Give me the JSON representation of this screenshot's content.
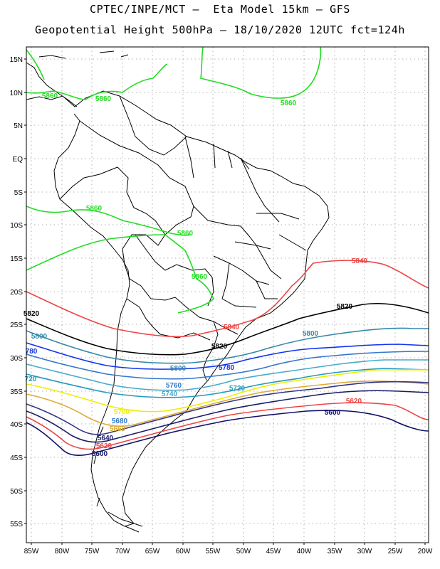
{
  "title_line1": "CPTEC/INPE/MCT –  Eta Model 15km – GFS",
  "title_line2": "Geopotential Height 500hPa – 18/10/2020 12UTC fct=124h",
  "lat_labels": [
    "15N",
    "10N",
    "5N",
    "EQ",
    "5S",
    "10S",
    "15S",
    "20S",
    "25S",
    "30S",
    "35S",
    "40S",
    "45S",
    "50S",
    "55S"
  ],
  "lon_labels": [
    "85W",
    "80W",
    "75W",
    "70W",
    "65W",
    "60W",
    "55W",
    "50W",
    "45W",
    "40W",
    "35W",
    "30W",
    "25W",
    "20W"
  ],
  "map": {
    "lon_range": [
      -86,
      -20
    ],
    "lat_range": [
      -58,
      16
    ],
    "variable": "Geopotential height 500hPa (m)"
  },
  "contours": [
    {
      "level": "5860",
      "color": "#22dd22"
    },
    {
      "level": "5840",
      "color": "#ee4444"
    },
    {
      "level": "5820",
      "color": "#000000"
    },
    {
      "level": "5800",
      "color": "#3388aa"
    },
    {
      "level": "5780",
      "color": "#1133ee"
    },
    {
      "level": "5760",
      "color": "#3377cc"
    },
    {
      "level": "5740",
      "color": "#44aacc"
    },
    {
      "level": "5720",
      "color": "#2299bb"
    },
    {
      "level": "5700",
      "color": "#eeee00"
    },
    {
      "level": "5680",
      "color": "#ddaa33"
    },
    {
      "level": "5660",
      "color": "#333388"
    },
    {
      "level": "5640",
      "color": "#1a1a66"
    },
    {
      "level": "5620",
      "color": "#ee4444"
    },
    {
      "level": "5600",
      "color": "#111166"
    }
  ],
  "contour_labels": [
    {
      "text": "5860",
      "color": "#22dd22"
    },
    {
      "text": "5860",
      "color": "#22dd22"
    },
    {
      "text": "5860",
      "color": "#22dd22"
    },
    {
      "text": "5860",
      "color": "#22dd22"
    },
    {
      "text": "5860",
      "color": "#22dd22"
    },
    {
      "text": "5860",
      "color": "#22dd22"
    },
    {
      "text": "5840",
      "color": "#ee4444"
    },
    {
      "text": "5840",
      "color": "#ee4444"
    },
    {
      "text": "5820",
      "color": "#000000"
    },
    {
      "text": "5820",
      "color": "#000000"
    },
    {
      "text": "5820",
      "color": "#000000"
    },
    {
      "text": "5800",
      "color": "#3388aa"
    },
    {
      "text": "5800",
      "color": "#3388aa"
    },
    {
      "text": "5800",
      "color": "#3388aa"
    },
    {
      "text": "780",
      "color": "#1133ee"
    },
    {
      "text": "5780",
      "color": "#1133ee"
    },
    {
      "text": "720",
      "color": "#2299bb"
    },
    {
      "text": "5760",
      "color": "#3377cc"
    },
    {
      "text": "5740",
      "color": "#44aacc"
    },
    {
      "text": "5720",
      "color": "#2299bb"
    },
    {
      "text": "5700",
      "color": "#eeee00"
    },
    {
      "text": "5680",
      "color": "#3377cc"
    },
    {
      "text": "5660",
      "color": "#ddaa33"
    },
    {
      "text": "5640",
      "color": "#1a1a66"
    },
    {
      "text": "5620",
      "color": "#ee4444"
    },
    {
      "text": "5600",
      "color": "#111166"
    },
    {
      "text": "5620",
      "color": "#ee4444"
    },
    {
      "text": "5600",
      "color": "#111166"
    }
  ]
}
